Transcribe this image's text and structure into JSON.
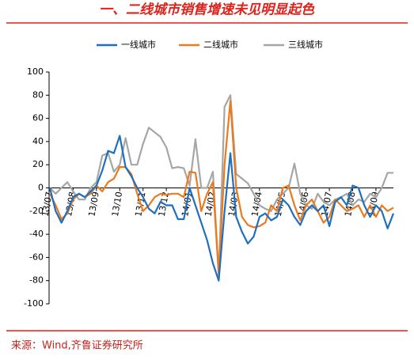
{
  "chart_data": {
    "type": "line",
    "title": "一、二线城市销售增速未见明显起色",
    "source": "来源：Wind,齐鲁证券研究所",
    "legend": "top",
    "categories": [
      "13/07",
      null,
      null,
      null,
      "13/08",
      null,
      null,
      null,
      "13/09",
      null,
      null,
      null,
      "13/10",
      null,
      null,
      null,
      "13/11",
      null,
      null,
      null,
      "13/12",
      null,
      null,
      null,
      "14/01",
      null,
      null,
      null,
      "14/02",
      null,
      null,
      null,
      "14/03",
      null,
      null,
      null,
      "14/04",
      null,
      null,
      null,
      "14/05",
      null,
      null,
      null,
      "14/06",
      null,
      null,
      null,
      "14/07",
      null,
      null,
      null,
      "14/08",
      null,
      null,
      null,
      "14/09",
      null,
      null,
      null
    ],
    "series": [
      {
        "name": "一线城市",
        "color": "#1f6fbf",
        "values": [
          0,
          -20,
          -30,
          -20,
          -8,
          -5,
          -8,
          -3,
          2,
          15,
          32,
          30,
          45,
          18,
          10,
          0,
          -8,
          -18,
          -22,
          -12,
          -15,
          -15,
          -27,
          -27,
          0,
          -15,
          -30,
          -45,
          -65,
          -80,
          -20,
          30,
          -25,
          -38,
          -48,
          -42,
          -25,
          -22,
          -28,
          -25,
          -10,
          -15,
          -25,
          -32,
          -20,
          -15,
          -20,
          -15,
          -33,
          -12,
          -8,
          -15,
          2,
          0,
          -15,
          -25,
          -15,
          -20,
          -35,
          -22
        ]
      },
      {
        "name": "二线城市",
        "color": "#ec7a1c",
        "values": [
          -5,
          -15,
          -27,
          -22,
          -10,
          -5,
          -8,
          -5,
          2,
          -3,
          5,
          8,
          18,
          18,
          12,
          -5,
          -20,
          -15,
          -8,
          -5,
          -6,
          -5,
          -5,
          -8,
          14,
          13,
          -20,
          -5,
          5,
          -75,
          20,
          75,
          0,
          -25,
          -32,
          -34,
          -33,
          -30,
          -15,
          -20,
          0,
          2,
          -15,
          -28,
          -15,
          -10,
          -20,
          -30,
          -25,
          -10,
          -15,
          -20,
          -18,
          -15,
          -25,
          -15,
          -25,
          -15,
          -20,
          -17
        ]
      },
      {
        "name": "三线城市",
        "color": "#a6a6a6",
        "values": [
          0,
          -5,
          0,
          5,
          -3,
          -10,
          -10,
          0,
          5,
          28,
          30,
          14,
          20,
          43,
          20,
          20,
          38,
          52,
          48,
          44,
          35,
          17,
          18,
          17,
          2,
          42,
          0,
          0,
          14,
          -75,
          70,
          80,
          12,
          8,
          4,
          -5,
          -15,
          -18,
          -20,
          -10,
          -5,
          0,
          21,
          -5,
          -15,
          -18,
          -5,
          -12,
          -15,
          -10,
          -8,
          -5,
          -15,
          -10,
          -12,
          -5,
          -8,
          0,
          13,
          13
        ]
      }
    ],
    "ylim": [
      -100,
      100
    ],
    "yticks": [
      -100,
      -80,
      -60,
      -40,
      -20,
      0,
      20,
      40,
      60,
      80,
      100
    ]
  }
}
